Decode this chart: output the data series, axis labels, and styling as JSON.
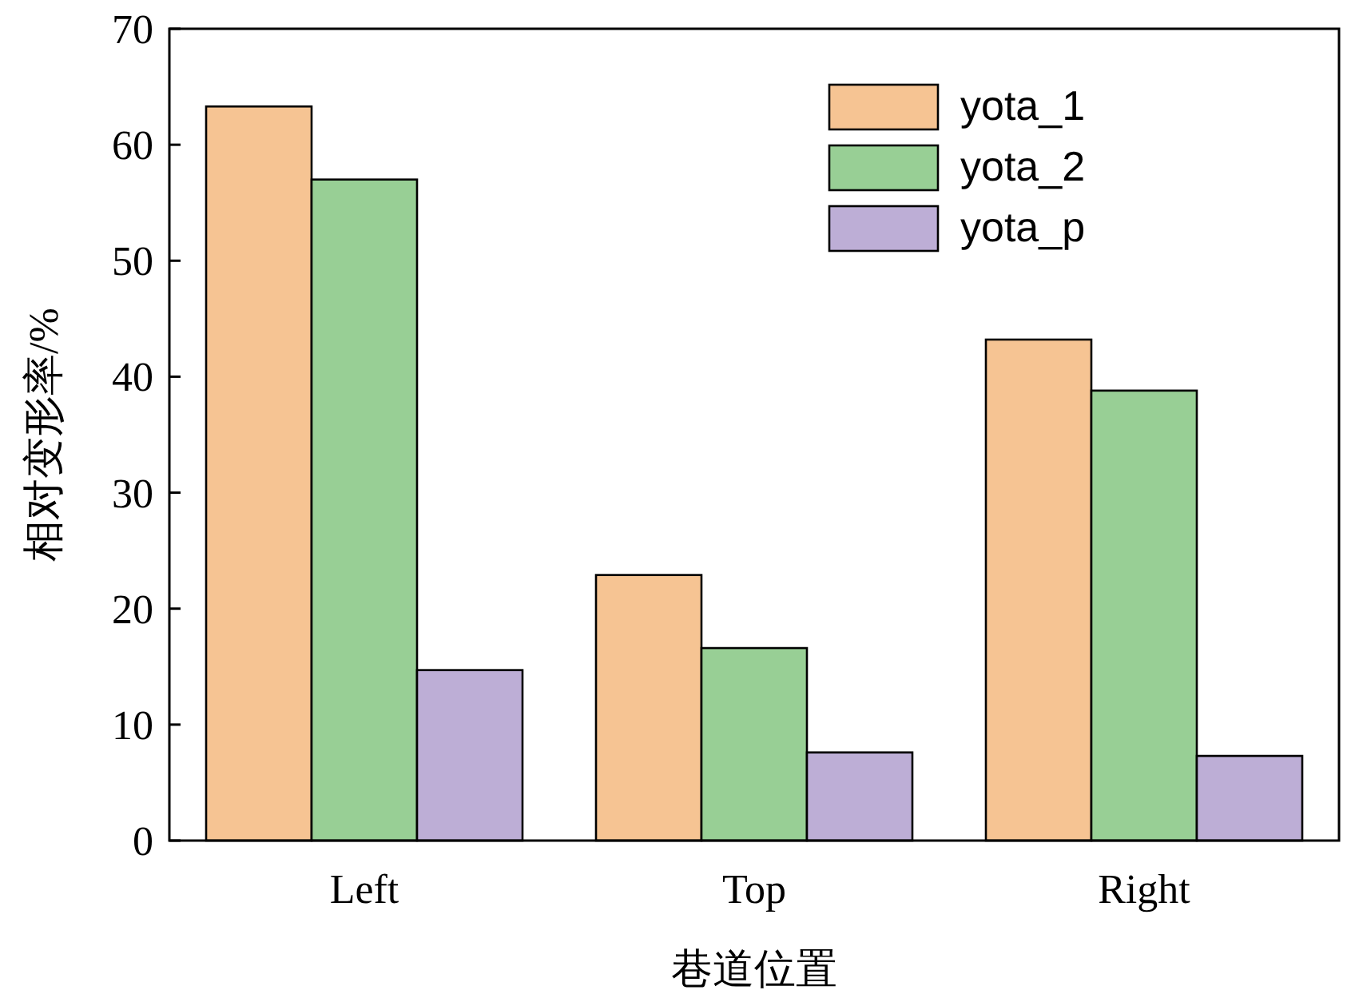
{
  "chart_data": {
    "type": "bar",
    "xlabel": "巷道位置",
    "ylabel": "相对变形率/%",
    "categories": [
      "Left",
      "Top",
      "Right"
    ],
    "series": [
      {
        "name": "yota_1",
        "color": "#f6c493",
        "values": [
          63.3,
          22.9,
          43.2
        ]
      },
      {
        "name": "yota_2",
        "color": "#98cf95",
        "values": [
          57.0,
          16.6,
          38.8
        ]
      },
      {
        "name": "yota_p",
        "color": "#bdaed6",
        "values": [
          14.7,
          7.6,
          7.3
        ]
      }
    ],
    "ylim": [
      0,
      70
    ],
    "yticks": [
      0,
      10,
      20,
      30,
      40,
      50,
      60,
      70
    ],
    "grid": false,
    "legend": "top right"
  }
}
